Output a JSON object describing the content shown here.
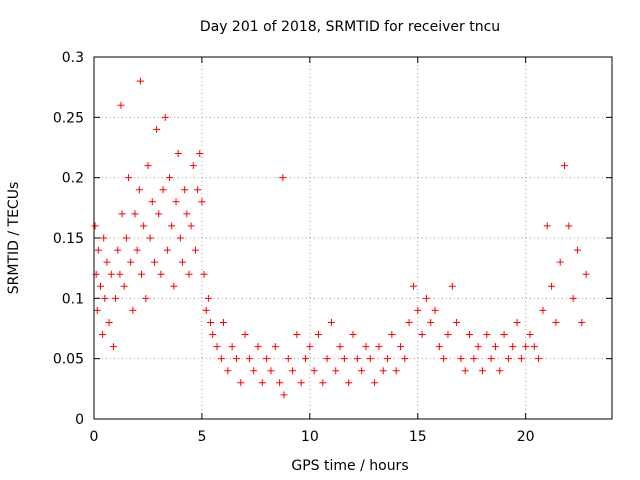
{
  "chart_data": {
    "type": "scatter",
    "title": "Day 201 of 2018, SRMTID for receiver tncu",
    "xlabel": "GPS time / hours",
    "ylabel": "SRMTID / TECUs",
    "xlim": [
      0,
      24
    ],
    "ylim": [
      0,
      0.3
    ],
    "x_ticks": [
      0,
      5,
      10,
      15,
      20
    ],
    "x_tick_labels": [
      "0",
      "5",
      "10",
      "15",
      "20"
    ],
    "y_ticks": [
      0,
      0.05,
      0.1,
      0.15,
      0.2,
      0.25,
      0.3
    ],
    "y_tick_labels": [
      "0",
      "0.05",
      "0.1",
      "0.15",
      "0.2",
      "0.25",
      "0.3"
    ],
    "grid": true,
    "legend": "none",
    "marker": "plus",
    "color": "#ff0000",
    "series": [
      {
        "values": [
          [
            0.05,
            0.16
          ],
          [
            0.1,
            0.12
          ],
          [
            0.15,
            0.09
          ],
          [
            0.2,
            0.14
          ],
          [
            0.3,
            0.11
          ],
          [
            0.4,
            0.07
          ],
          [
            0.45,
            0.15
          ],
          [
            0.5,
            0.1
          ],
          [
            0.6,
            0.13
          ],
          [
            0.7,
            0.08
          ],
          [
            0.8,
            0.12
          ],
          [
            0.9,
            0.06
          ],
          [
            1.0,
            0.1
          ],
          [
            1.1,
            0.14
          ],
          [
            1.2,
            0.12
          ],
          [
            1.25,
            0.26
          ],
          [
            1.3,
            0.17
          ],
          [
            1.4,
            0.11
          ],
          [
            1.5,
            0.15
          ],
          [
            1.6,
            0.2
          ],
          [
            1.7,
            0.13
          ],
          [
            1.8,
            0.09
          ],
          [
            1.9,
            0.17
          ],
          [
            2.0,
            0.14
          ],
          [
            2.1,
            0.19
          ],
          [
            2.15,
            0.28
          ],
          [
            2.2,
            0.12
          ],
          [
            2.3,
            0.16
          ],
          [
            2.4,
            0.1
          ],
          [
            2.5,
            0.21
          ],
          [
            2.6,
            0.15
          ],
          [
            2.7,
            0.18
          ],
          [
            2.8,
            0.13
          ],
          [
            2.9,
            0.24
          ],
          [
            3.0,
            0.17
          ],
          [
            3.1,
            0.12
          ],
          [
            3.2,
            0.19
          ],
          [
            3.3,
            0.25
          ],
          [
            3.4,
            0.14
          ],
          [
            3.5,
            0.2
          ],
          [
            3.6,
            0.16
          ],
          [
            3.7,
            0.11
          ],
          [
            3.8,
            0.18
          ],
          [
            3.9,
            0.22
          ],
          [
            4.0,
            0.15
          ],
          [
            4.1,
            0.13
          ],
          [
            4.2,
            0.19
          ],
          [
            4.3,
            0.17
          ],
          [
            4.4,
            0.12
          ],
          [
            4.5,
            0.16
          ],
          [
            4.6,
            0.21
          ],
          [
            4.7,
            0.14
          ],
          [
            4.8,
            0.19
          ],
          [
            4.9,
            0.22
          ],
          [
            5.0,
            0.18
          ],
          [
            5.1,
            0.12
          ],
          [
            5.2,
            0.09
          ],
          [
            5.3,
            0.1
          ],
          [
            5.4,
            0.08
          ],
          [
            5.5,
            0.07
          ],
          [
            5.7,
            0.06
          ],
          [
            5.9,
            0.05
          ],
          [
            6.0,
            0.08
          ],
          [
            6.2,
            0.04
          ],
          [
            6.4,
            0.06
          ],
          [
            6.6,
            0.05
          ],
          [
            6.8,
            0.03
          ],
          [
            7.0,
            0.07
          ],
          [
            7.2,
            0.05
          ],
          [
            7.4,
            0.04
          ],
          [
            7.6,
            0.06
          ],
          [
            7.8,
            0.03
          ],
          [
            8.0,
            0.05
          ],
          [
            8.2,
            0.04
          ],
          [
            8.4,
            0.06
          ],
          [
            8.6,
            0.03
          ],
          [
            8.75,
            0.2
          ],
          [
            8.8,
            0.02
          ],
          [
            9.0,
            0.05
          ],
          [
            9.2,
            0.04
          ],
          [
            9.4,
            0.07
          ],
          [
            9.6,
            0.03
          ],
          [
            9.8,
            0.05
          ],
          [
            10.0,
            0.06
          ],
          [
            10.2,
            0.04
          ],
          [
            10.4,
            0.07
          ],
          [
            10.6,
            0.03
          ],
          [
            10.8,
            0.05
          ],
          [
            11.0,
            0.08
          ],
          [
            11.2,
            0.04
          ],
          [
            11.4,
            0.06
          ],
          [
            11.6,
            0.05
          ],
          [
            11.8,
            0.03
          ],
          [
            12.0,
            0.07
          ],
          [
            12.2,
            0.05
          ],
          [
            12.4,
            0.04
          ],
          [
            12.6,
            0.06
          ],
          [
            12.8,
            0.05
          ],
          [
            13.0,
            0.03
          ],
          [
            13.2,
            0.06
          ],
          [
            13.4,
            0.04
          ],
          [
            13.6,
            0.05
          ],
          [
            13.8,
            0.07
          ],
          [
            14.0,
            0.04
          ],
          [
            14.2,
            0.06
          ],
          [
            14.4,
            0.05
          ],
          [
            14.6,
            0.08
          ],
          [
            14.8,
            0.11
          ],
          [
            15.0,
            0.09
          ],
          [
            15.2,
            0.07
          ],
          [
            15.4,
            0.1
          ],
          [
            15.6,
            0.08
          ],
          [
            15.8,
            0.09
          ],
          [
            16.0,
            0.06
          ],
          [
            16.2,
            0.05
          ],
          [
            16.4,
            0.07
          ],
          [
            16.6,
            0.11
          ],
          [
            16.8,
            0.08
          ],
          [
            17.0,
            0.05
          ],
          [
            17.2,
            0.04
          ],
          [
            17.4,
            0.07
          ],
          [
            17.6,
            0.05
          ],
          [
            17.8,
            0.06
          ],
          [
            18.0,
            0.04
          ],
          [
            18.2,
            0.07
          ],
          [
            18.4,
            0.05
          ],
          [
            18.6,
            0.06
          ],
          [
            18.8,
            0.04
          ],
          [
            19.0,
            0.07
          ],
          [
            19.2,
            0.05
          ],
          [
            19.4,
            0.06
          ],
          [
            19.6,
            0.08
          ],
          [
            19.8,
            0.05
          ],
          [
            20.0,
            0.06
          ],
          [
            20.2,
            0.07
          ],
          [
            20.4,
            0.06
          ],
          [
            20.6,
            0.05
          ],
          [
            20.8,
            0.09
          ],
          [
            21.0,
            0.16
          ],
          [
            21.2,
            0.11
          ],
          [
            21.4,
            0.08
          ],
          [
            21.6,
            0.13
          ],
          [
            21.8,
            0.21
          ],
          [
            22.0,
            0.16
          ],
          [
            22.2,
            0.1
          ],
          [
            22.4,
            0.14
          ],
          [
            22.6,
            0.08
          ],
          [
            22.8,
            0.12
          ]
        ]
      }
    ]
  }
}
